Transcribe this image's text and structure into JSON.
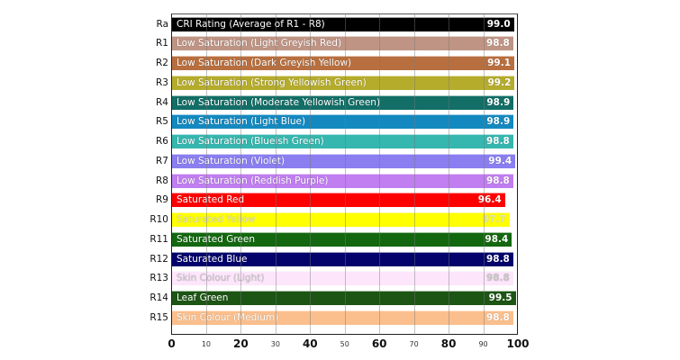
{
  "chart_data": {
    "type": "bar",
    "orientation": "horizontal",
    "title": "",
    "xlabel": "",
    "ylabel": "",
    "xlim": [
      0,
      100
    ],
    "grid": true,
    "legend": "none",
    "x_ticks": [
      0,
      10,
      20,
      30,
      40,
      50,
      60,
      70,
      80,
      90,
      100
    ],
    "categories": [
      "Ra",
      "R1",
      "R2",
      "R3",
      "R4",
      "R5",
      "R6",
      "R7",
      "R8",
      "R9",
      "R10",
      "R11",
      "R12",
      "R13",
      "R14",
      "R15"
    ],
    "bar_labels": [
      "CRI Rating (Average of R1 - R8)",
      "Low Saturation (Light Greyish Red)",
      "Low Saturation (Dark Greyish Yellow)",
      "Low Saturation (Strong Yellowish Green)",
      "Low Saturation (Moderate Yellowish Green)",
      "Low Saturation (Light Blue)",
      "Low Saturation (Blueish Green)",
      "Low Saturation (Violet)",
      "Low Saturation (Reddish Purple)",
      "Saturated Red",
      "Saturated Yellow",
      "Saturated Green",
      "Saturated Blue",
      "Skin Colour (Light)",
      "Leaf Green",
      "Skin Colour (Medium)"
    ],
    "values": [
      99.0,
      98.8,
      99.1,
      99.2,
      98.9,
      98.9,
      98.8,
      99.4,
      98.8,
      96.4,
      97.7,
      98.4,
      98.8,
      98.8,
      99.5,
      98.8
    ],
    "value_labels": [
      "99.0",
      "98.8",
      "99.1",
      "99.2",
      "98.9",
      "98.9",
      "98.8",
      "99.4",
      "98.8",
      "96.4",
      "97.7",
      "98.4",
      "98.8",
      "98.8",
      "99.5",
      "98.8"
    ],
    "colors": [
      "#000000",
      "#bf9484",
      "#b86f3f",
      "#b5ac2c",
      "#126e66",
      "#1389c0",
      "#35b6ae",
      "#8a7ef0",
      "#c07ef0",
      "#ff0000",
      "#ffff00",
      "#13680f",
      "#03036b",
      "#fde6fb",
      "#1c5514",
      "#fbbf8d"
    ],
    "text_colors": [
      "#ffffff",
      "#ffffff",
      "#ffffff",
      "#ffffff",
      "#ffffff",
      "#ffffff",
      "#ffffff",
      "#ffffff",
      "#ffffff",
      "#ffffff",
      "#e6e6c8",
      "#ffffff",
      "#ffffff",
      "#c8c8c8",
      "#ffffff",
      "#ffffff"
    ]
  }
}
